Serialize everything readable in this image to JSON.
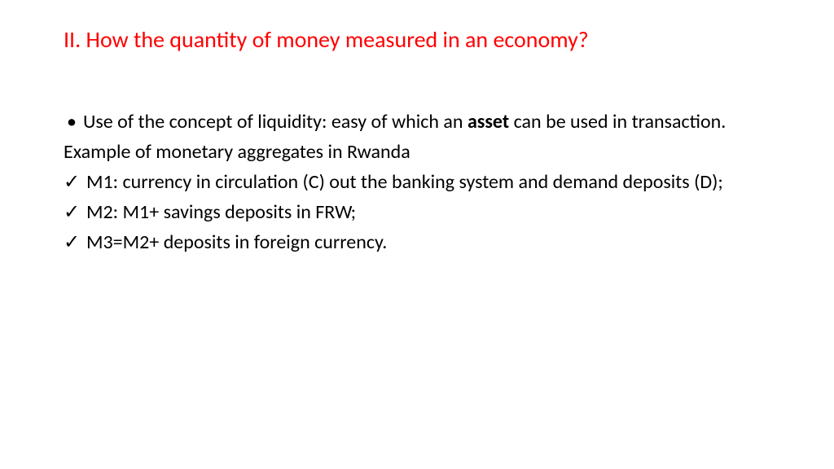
{
  "title": {
    "text": "II. How the quantity of money measured in an economy?",
    "color": "#ff0000",
    "fontsize": 28
  },
  "body": {
    "color": "#000000",
    "fontsize": 24,
    "bullet_char": "•",
    "check_char": "✓",
    "items": [
      {
        "type": "bullet",
        "pre": "Use of the concept of liquidity: easy of which an ",
        "bold": "asset",
        "post": " can be used in transaction."
      },
      {
        "type": "plain",
        "text": "Example of monetary aggregates in Rwanda"
      },
      {
        "type": "check",
        "text": "M1: currency in circulation (C) out the banking system and demand deposits (D);"
      },
      {
        "type": "check",
        "text": "M2: M1+ savings deposits in FRW;"
      },
      {
        "type": "check",
        "text": "M3=M2+ deposits in foreign currency."
      }
    ]
  }
}
